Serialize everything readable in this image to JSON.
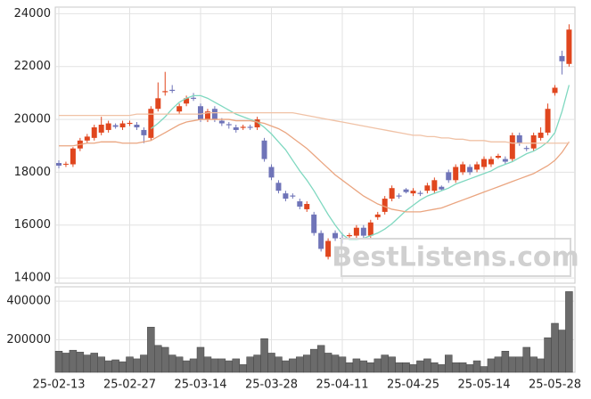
{
  "chart_data": {
    "type": "candlestick",
    "categories": [
      "25-02-13",
      null,
      null,
      null,
      null,
      null,
      null,
      null,
      null,
      null,
      "25-02-27",
      null,
      null,
      null,
      null,
      null,
      null,
      null,
      null,
      null,
      "25-03-14",
      null,
      null,
      null,
      null,
      null,
      null,
      null,
      null,
      null,
      "25-03-28",
      null,
      null,
      null,
      null,
      null,
      null,
      null,
      null,
      null,
      "25-04-11",
      null,
      null,
      null,
      null,
      null,
      null,
      null,
      null,
      null,
      "25-04-25",
      null,
      null,
      null,
      null,
      null,
      null,
      null,
      null,
      null,
      "25-05-14",
      null,
      null,
      null,
      null,
      null,
      null,
      null,
      null,
      null,
      "25-05-28",
      null,
      null
    ],
    "open": [
      18350,
      18300,
      18300,
      18900,
      19200,
      19300,
      19500,
      19600,
      19780,
      19700,
      19830,
      19800,
      19600,
      19300,
      20400,
      21030,
      21120,
      20300,
      20600,
      20820,
      20500,
      20000,
      20400,
      19950,
      19820,
      19700,
      19680,
      19720,
      19700,
      19200,
      18200,
      17600,
      17200,
      17120,
      16900,
      16600,
      16400,
      15700,
      14800,
      15700,
      15520,
      15580,
      15600,
      15900,
      15600,
      16300,
      16500,
      17000,
      17120,
      17350,
      17200,
      17220,
      17300,
      17300,
      17450,
      18000,
      17700,
      18000,
      18200,
      18100,
      18200,
      18300,
      18550,
      18500,
      18500,
      19400,
      18920,
      18900,
      19300,
      19500,
      21000,
      22400,
      22100
    ],
    "close": [
      18250,
      18320,
      18900,
      19200,
      19350,
      19700,
      19800,
      19850,
      19720,
      19850,
      19870,
      19700,
      19400,
      20400,
      20800,
      21070,
      21080,
      20500,
      20800,
      20780,
      20000,
      20300,
      20000,
      19850,
      19780,
      19600,
      19720,
      19680,
      20000,
      18500,
      17800,
      17300,
      17000,
      17080,
      16700,
      16800,
      15700,
      15100,
      15400,
      15500,
      15480,
      15620,
      15900,
      15600,
      16100,
      16400,
      17000,
      17400,
      17080,
      17250,
      17300,
      17180,
      17500,
      17700,
      17350,
      17700,
      18200,
      18300,
      18000,
      18300,
      18500,
      18500,
      18620,
      18400,
      19400,
      19100,
      18880,
      19400,
      19500,
      20400,
      21200,
      22200,
      23400
    ],
    "high": [
      18450,
      18400,
      18950,
      19300,
      19450,
      19800,
      20100,
      19950,
      19850,
      19950,
      19950,
      19900,
      19700,
      20500,
      21400,
      21800,
      21300,
      20600,
      20900,
      21000,
      20600,
      20400,
      20500,
      20050,
      19900,
      19800,
      19800,
      19800,
      20100,
      19300,
      18300,
      17700,
      17300,
      17200,
      17000,
      16900,
      16500,
      15800,
      15500,
      15800,
      15700,
      15700,
      16000,
      16000,
      16200,
      16500,
      17100,
      17500,
      17200,
      17400,
      17400,
      17300,
      17600,
      17800,
      17500,
      18100,
      18300,
      18400,
      18300,
      18400,
      18600,
      18600,
      18700,
      18600,
      19500,
      19500,
      19000,
      19500,
      19700,
      20600,
      21300,
      22600,
      23600
    ],
    "low": [
      18150,
      18200,
      18200,
      18800,
      19100,
      19200,
      19400,
      19500,
      19650,
      19600,
      19750,
      19600,
      19100,
      19200,
      20300,
      20900,
      21000,
      20200,
      20500,
      20700,
      19900,
      19900,
      19900,
      19750,
      19650,
      19500,
      19600,
      19600,
      19600,
      18400,
      17700,
      17200,
      16900,
      17000,
      16600,
      16500,
      15600,
      15000,
      14700,
      15400,
      15300,
      15500,
      15500,
      15500,
      15500,
      16200,
      16400,
      16900,
      17000,
      17200,
      17100,
      17100,
      17200,
      17200,
      17300,
      17600,
      17600,
      17900,
      17900,
      18000,
      18100,
      18200,
      18500,
      18300,
      18400,
      19000,
      18800,
      18800,
      19200,
      19400,
      20900,
      21700,
      22000
    ],
    "up_color": "#e0461e",
    "down_color": "#6f74b8",
    "ylim": [
      13800,
      24250
    ],
    "yticks": [
      14000,
      16000,
      18000,
      20000,
      22000,
      24000
    ],
    "grid": true,
    "lines": [
      {
        "color": "#7fd8c0",
        "values": [
          null,
          null,
          null,
          null,
          null,
          null,
          null,
          null,
          null,
          null,
          null,
          null,
          null,
          19650,
          19850,
          20100,
          20400,
          20650,
          20800,
          20900,
          20900,
          20800,
          20650,
          20500,
          20350,
          20200,
          20100,
          20000,
          19900,
          19700,
          19450,
          19150,
          18850,
          18450,
          18050,
          17700,
          17300,
          16850,
          16400,
          16000,
          15650,
          15450,
          15450,
          15500,
          15600,
          15700,
          15850,
          16050,
          16300,
          16550,
          16750,
          16950,
          17100,
          17200,
          17300,
          17400,
          17550,
          17650,
          17750,
          17850,
          17950,
          18050,
          18200,
          18300,
          18400,
          18550,
          18700,
          18800,
          18950,
          19150,
          19500,
          20300,
          21300
        ]
      },
      {
        "color": "#eaa580",
        "values": [
          19000,
          19000,
          19000,
          19050,
          19100,
          19100,
          19150,
          19150,
          19150,
          19100,
          19100,
          19100,
          19150,
          19200,
          19350,
          19500,
          19650,
          19800,
          19900,
          19950,
          20000,
          20000,
          20000,
          20000,
          20000,
          19950,
          19950,
          19950,
          19900,
          19850,
          19750,
          19650,
          19500,
          19300,
          19100,
          18900,
          18650,
          18400,
          18150,
          17900,
          17700,
          17500,
          17300,
          17100,
          16950,
          16800,
          16700,
          16600,
          16550,
          16500,
          16500,
          16500,
          16550,
          16600,
          16650,
          16750,
          16850,
          16950,
          17050,
          17150,
          17250,
          17350,
          17450,
          17550,
          17650,
          17750,
          17850,
          17950,
          18100,
          18250,
          18450,
          18750,
          19150
        ]
      },
      {
        "color": "#f0c2a6",
        "values": [
          20150,
          20150,
          20150,
          20150,
          20150,
          20150,
          20150,
          20150,
          20150,
          20150,
          20150,
          20200,
          20200,
          20200,
          20200,
          20200,
          20200,
          20200,
          20200,
          20200,
          20200,
          20250,
          20250,
          20250,
          20250,
          20250,
          20250,
          20250,
          20250,
          20250,
          20250,
          20250,
          20250,
          20250,
          20200,
          20150,
          20100,
          20050,
          20000,
          19950,
          19900,
          19850,
          19800,
          19750,
          19700,
          19650,
          19600,
          19550,
          19500,
          19450,
          19400,
          19400,
          19350,
          19350,
          19300,
          19300,
          19250,
          19250,
          19200,
          19200,
          19200,
          19150,
          19150,
          19150,
          19100,
          19100,
          19100,
          19100,
          19100,
          19100,
          19100,
          19100,
          19100
        ]
      }
    ],
    "watermark": "BestListens.com",
    "volume": {
      "color": "#6b6b6b",
      "values": [
        140000,
        130000,
        145000,
        135000,
        120000,
        130000,
        110000,
        90000,
        95000,
        85000,
        110000,
        100000,
        120000,
        265000,
        170000,
        160000,
        120000,
        110000,
        90000,
        100000,
        160000,
        110000,
        100000,
        100000,
        90000,
        100000,
        70000,
        110000,
        120000,
        205000,
        130000,
        110000,
        90000,
        100000,
        110000,
        120000,
        150000,
        170000,
        130000,
        120000,
        110000,
        80000,
        100000,
        90000,
        80000,
        100000,
        120000,
        110000,
        80000,
        80000,
        70000,
        90000,
        100000,
        80000,
        70000,
        120000,
        80000,
        80000,
        70000,
        90000,
        60000,
        100000,
        110000,
        140000,
        110000,
        110000,
        160000,
        110000,
        100000,
        210000,
        285000,
        250000,
        450000
      ],
      "ylim": [
        30000,
        475000
      ],
      "yticks": [
        200000,
        400000
      ]
    }
  }
}
